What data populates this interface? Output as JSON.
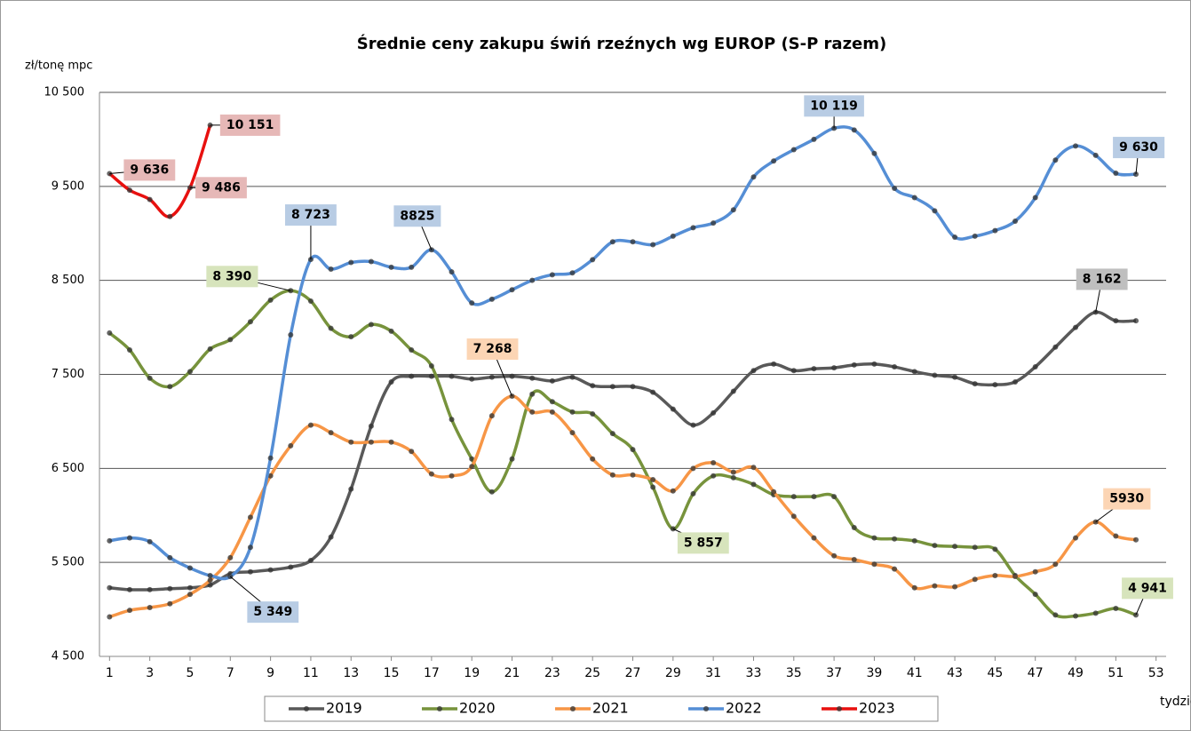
{
  "chart_data": {
    "type": "line",
    "title": "Średnie ceny zakupu świń rzeźnych wg EUROP (S-P razem)",
    "y_label": "zł/tonę mpc",
    "x_label": "tydzień",
    "x": [
      1,
      2,
      3,
      4,
      5,
      6,
      7,
      8,
      9,
      10,
      11,
      12,
      13,
      14,
      15,
      16,
      17,
      18,
      19,
      20,
      21,
      22,
      23,
      24,
      25,
      26,
      27,
      28,
      29,
      30,
      31,
      32,
      33,
      34,
      35,
      36,
      37,
      38,
      39,
      40,
      41,
      42,
      43,
      44,
      45,
      46,
      47,
      48,
      49,
      50,
      51,
      52
    ],
    "xlim": [
      0.5,
      53.5
    ],
    "xticks": [
      1,
      3,
      5,
      7,
      9,
      11,
      13,
      15,
      17,
      19,
      21,
      23,
      25,
      27,
      29,
      31,
      33,
      35,
      37,
      39,
      41,
      43,
      45,
      47,
      49,
      51,
      53
    ],
    "ylim": [
      4500,
      10500
    ],
    "yticks": [
      {
        "value": 4500,
        "label": "4 500"
      },
      {
        "value": 5500,
        "label": "5 500"
      },
      {
        "value": 6500,
        "label": "6 500"
      },
      {
        "value": 7500,
        "label": "7 500"
      },
      {
        "value": 8500,
        "label": "8 500"
      },
      {
        "value": 9500,
        "label": "9 500"
      },
      {
        "value": 10500,
        "label": "10 500"
      }
    ],
    "grid": true,
    "legend": "bottom",
    "series": [
      {
        "name": "2019",
        "color": "#595959",
        "label_color": "#bfbfbf",
        "values": [
          5230,
          5210,
          5210,
          5220,
          5230,
          5260,
          5380,
          5400,
          5420,
          5450,
          5520,
          5770,
          6280,
          6950,
          7420,
          7480,
          7480,
          7480,
          7450,
          7470,
          7480,
          7460,
          7430,
          7470,
          7380,
          7370,
          7370,
          7310,
          7130,
          6960,
          7090,
          7320,
          7540,
          7610,
          7540,
          7560,
          7570,
          7600,
          7610,
          7580,
          7530,
          7490,
          7470,
          7400,
          7390,
          7420,
          7580,
          7790,
          8000,
          8162,
          8070,
          8070
        ],
        "value_labels": [
          null,
          null,
          null,
          null,
          null,
          null,
          null,
          null,
          null,
          null,
          null,
          null,
          null,
          null,
          null,
          null,
          null,
          null,
          null,
          null,
          null,
          null,
          null,
          null,
          null,
          null,
          null,
          null,
          null,
          null,
          null,
          null,
          null,
          null,
          null,
          null,
          null,
          null,
          null,
          null,
          null,
          null,
          null,
          null,
          null,
          null,
          null,
          null,
          null,
          "8 162",
          null,
          null
        ]
      },
      {
        "name": "2020",
        "color": "#77933c",
        "label_color": "#d7e4bc",
        "values": [
          7940,
          7760,
          7460,
          7370,
          7530,
          7770,
          7870,
          8060,
          8290,
          8390,
          8280,
          7990,
          7900,
          8030,
          7960,
          7760,
          7590,
          7020,
          6600,
          6250,
          6600,
          7290,
          7210,
          7100,
          7080,
          6870,
          6700,
          6300,
          5857,
          6230,
          6420,
          6400,
          6330,
          6220,
          6200,
          6200,
          6200,
          5870,
          5760,
          5750,
          5730,
          5680,
          5670,
          5660,
          5640,
          5360,
          5160,
          4940,
          4930,
          4960,
          5010,
          4941
        ],
        "value_labels": [
          null,
          null,
          null,
          null,
          null,
          null,
          null,
          null,
          null,
          "8 390",
          null,
          null,
          null,
          null,
          null,
          null,
          null,
          null,
          null,
          null,
          null,
          null,
          null,
          null,
          null,
          null,
          null,
          null,
          "5 857",
          null,
          null,
          null,
          null,
          null,
          null,
          null,
          null,
          null,
          null,
          null,
          null,
          null,
          null,
          null,
          null,
          null,
          null,
          null,
          null,
          null,
          null,
          "4 941"
        ]
      },
      {
        "name": "2021",
        "color": "#f79646",
        "label_color": "#fcd5b4",
        "values": [
          4920,
          4990,
          5020,
          5060,
          5160,
          5310,
          5550,
          5980,
          6420,
          6740,
          6960,
          6880,
          6780,
          6780,
          6780,
          6680,
          6440,
          6420,
          6520,
          7060,
          7268,
          7100,
          7100,
          6880,
          6600,
          6430,
          6430,
          6380,
          6260,
          6500,
          6560,
          6460,
          6510,
          6250,
          5990,
          5760,
          5570,
          5530,
          5480,
          5430,
          5230,
          5250,
          5240,
          5320,
          5360,
          5350,
          5400,
          5480,
          5760,
          5930,
          5780,
          5740
        ],
        "value_labels": [
          null,
          null,
          null,
          null,
          null,
          null,
          null,
          null,
          null,
          null,
          null,
          null,
          null,
          null,
          null,
          null,
          null,
          null,
          null,
          null,
          "7 268",
          null,
          null,
          null,
          null,
          null,
          null,
          null,
          null,
          null,
          null,
          null,
          null,
          null,
          null,
          null,
          null,
          null,
          null,
          null,
          null,
          null,
          null,
          null,
          null,
          null,
          null,
          null,
          null,
          "5930",
          null,
          null
        ]
      },
      {
        "name": "2022",
        "color": "#558ed5",
        "label_color": "#b8cce4",
        "values": [
          5730,
          5760,
          5720,
          5550,
          5440,
          5360,
          5349,
          5660,
          6610,
          7920,
          8723,
          8620,
          8690,
          8700,
          8640,
          8640,
          8825,
          8590,
          8260,
          8300,
          8400,
          8500,
          8560,
          8580,
          8720,
          8910,
          8910,
          8880,
          8970,
          9060,
          9110,
          9250,
          9600,
          9770,
          9890,
          10000,
          10119,
          10100,
          9850,
          9480,
          9380,
          9240,
          8960,
          8970,
          9030,
          9130,
          9380,
          9780,
          9930,
          9830,
          9640,
          9630
        ],
        "value_labels": [
          null,
          null,
          null,
          null,
          null,
          null,
          "5 349",
          null,
          null,
          null,
          "8 723",
          null,
          null,
          null,
          null,
          null,
          "8825",
          null,
          null,
          null,
          null,
          null,
          null,
          null,
          null,
          null,
          null,
          null,
          null,
          null,
          null,
          null,
          null,
          null,
          null,
          null,
          "10 119",
          null,
          null,
          null,
          null,
          null,
          null,
          null,
          null,
          null,
          null,
          null,
          null,
          null,
          null,
          "9 630"
        ]
      },
      {
        "name": "2023",
        "color": "#e8100f",
        "label_color": "#e6b8b7",
        "values": [
          9636,
          9460,
          9360,
          9179,
          9486,
          10151,
          null,
          null,
          null,
          null,
          null,
          null,
          null,
          null,
          null,
          null,
          null,
          null,
          null,
          null,
          null,
          null,
          null,
          null,
          null,
          null,
          null,
          null,
          null,
          null,
          null,
          null,
          null,
          null,
          null,
          null,
          null,
          null,
          null,
          null,
          null,
          null,
          null,
          null,
          null,
          null,
          null,
          null,
          null,
          null,
          null,
          null
        ],
        "value_labels": [
          "9 636",
          null,
          null,
          null,
          "9 486",
          "10 151",
          null,
          null,
          null,
          null,
          null,
          null,
          null,
          null,
          null,
          null,
          null,
          null,
          null,
          null,
          null,
          null,
          null,
          null,
          null,
          null,
          null,
          null,
          null,
          null,
          null,
          null,
          null,
          null,
          null,
          null,
          null,
          null,
          null,
          null,
          null,
          null,
          null,
          null,
          null,
          null,
          null,
          null,
          null,
          null,
          null,
          null
        ]
      }
    ]
  }
}
